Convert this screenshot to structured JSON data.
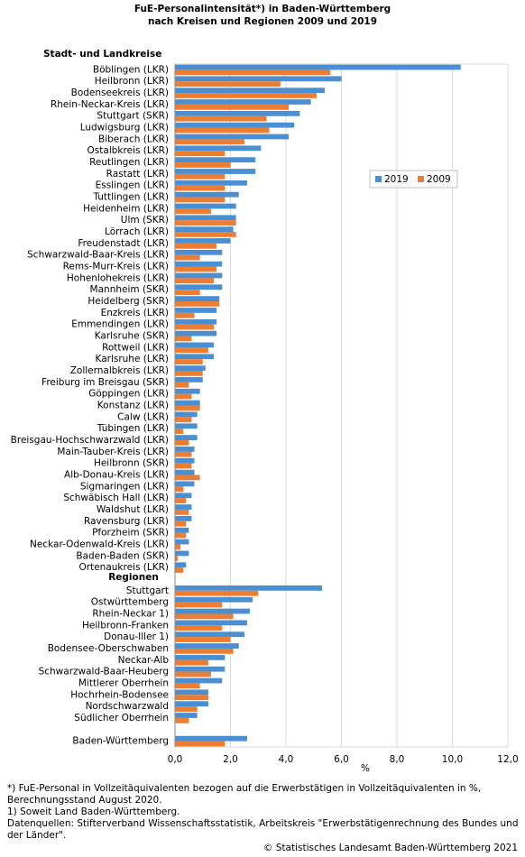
{
  "chart_data": {
    "type": "hbar",
    "title": "FuE-Personalintensität*) in Baden-Württemberg",
    "subtitle": "nach Kreisen und Regionen 2009 und 2019",
    "section_label": "Stadt- und Landkreise",
    "xlabel": "%",
    "categories": [
      "Böblingen (LKR)",
      "Heilbronn (LKR)",
      "Bodenseekreis (LKR)",
      "Rhein-Neckar-Kreis (LKR)",
      "Stuttgart (SKR)",
      "Ludwigsburg (LKR)",
      "Biberach (LKR)",
      "Ostalbkreis (LKR)",
      "Reutlingen (LKR)",
      "Rastatt (LKR)",
      "Esslingen (LKR)",
      "Tuttlingen (LKR)",
      "Heidenheim (LKR)",
      "Ulm (SKR)",
      "Lörrach (LKR)",
      "Freudenstadt (LKR)",
      "Schwarzwald-Baar-Kreis (LKR)",
      "Rems-Murr-Kreis  (LKR)",
      "Hohenlohekreis (LKR)",
      "Mannheim (SKR)",
      "Heidelberg (SKR)",
      "Enzkreis (LKR)",
      "Emmendingen (LKR)",
      "Karlsruhe (SKR)",
      "Rottweil (LKR)",
      "Karlsruhe (LKR)",
      "Zollernalbkreis (LKR)",
      "Freiburg im Breisgau (SKR)",
      "Göppingen (LKR)",
      "Konstanz (LKR)",
      "Calw (LKR)",
      "Tübingen (LKR)",
      "Breisgau-Hochschwarzwald (LKR)",
      "Main-Tauber-Kreis (LKR)",
      "Heilbronn (SKR)",
      "Alb-Donau-Kreis (LKR)",
      "Sigmaringen (LKR)",
      "Schwäbisch Hall (LKR)",
      "Waldshut (LKR)",
      "Ravensburg (LKR)",
      "Pforzheim (SKR)",
      "Neckar-Odenwald-Kreis (LKR)",
      "Baden-Baden (SKR)",
      "Ortenaukreis (LKR)",
      "Regionen",
      "Stuttgart",
      "Ostwürttemberg",
      "Rhein-Neckar 1)",
      "Heilbronn-Franken",
      "Donau-Iller 1)",
      "Bodensee-Oberschwaben",
      "Neckar-Alb",
      "Schwarzwald-Baar-Heuberg",
      "Mittlerer Oberrhein",
      "Hochrhein-Bodensee",
      "Nordschwarzwald",
      "Südlicher Oberrhein",
      null,
      "Baden-Württemberg"
    ],
    "series": [
      {
        "name": "2019",
        "color": "#4a8fd1",
        "values": [
          10.3,
          6.0,
          5.4,
          4.9,
          4.5,
          4.3,
          4.1,
          3.1,
          2.9,
          2.9,
          2.6,
          2.3,
          2.2,
          2.2,
          2.1,
          2.0,
          1.7,
          1.7,
          1.7,
          1.7,
          1.6,
          1.5,
          1.5,
          1.5,
          1.4,
          1.4,
          1.1,
          1.0,
          0.9,
          0.9,
          0.8,
          0.8,
          0.8,
          0.7,
          0.7,
          0.7,
          0.7,
          0.6,
          0.6,
          0.6,
          0.5,
          0.5,
          0.5,
          0.4,
          null,
          5.3,
          2.8,
          2.7,
          2.6,
          2.5,
          2.3,
          1.8,
          1.8,
          1.7,
          1.2,
          1.2,
          0.8,
          null,
          2.6
        ]
      },
      {
        "name": "2009",
        "color": "#ed7d31",
        "values": [
          5.6,
          3.8,
          5.1,
          4.1,
          3.3,
          3.4,
          2.5,
          1.8,
          2.0,
          1.8,
          1.8,
          1.8,
          1.3,
          2.2,
          2.2,
          1.5,
          0.9,
          1.5,
          1.4,
          0.9,
          1.6,
          0.7,
          1.4,
          0.6,
          1.2,
          1.0,
          1.0,
          0.5,
          0.6,
          0.9,
          0.6,
          0.3,
          0.5,
          0.6,
          0.6,
          0.9,
          0.3,
          0.4,
          0.5,
          0.4,
          0.4,
          0.2,
          0.1,
          0.3,
          null,
          3.0,
          1.7,
          2.1,
          1.7,
          2.0,
          2.1,
          1.2,
          1.3,
          0.9,
          1.2,
          0.8,
          0.5,
          null,
          1.8
        ]
      }
    ],
    "xlim": [
      0,
      12
    ],
    "xticks": [
      {
        "value": 0,
        "label": "0,0"
      },
      {
        "value": 2,
        "label": "2,0"
      },
      {
        "value": 4,
        "label": "4,0"
      },
      {
        "value": 6,
        "label": "6,0"
      },
      {
        "value": 8,
        "label": "8,0"
      },
      {
        "value": 10,
        "label": "10,0"
      },
      {
        "value": 12,
        "label": "12,0"
      }
    ],
    "grid": true,
    "notes": [
      "*) FuE-Personal in Vollzeitäquivalenten bezogen auf die Erwerbstätigen in Vollzeitäquivalenten in %, Berechnungsstand August 2020.",
      "1) Soweit Land Baden-Württemberg.",
      "Datenquellen: Stifterverband Wissenschaftsstatistik, Arbeitskreis \"Erwerbstätigenrechnung des Bundes und der Länder\"."
    ],
    "source": "© Statistisches Landesamt Baden-Württemberg 2021"
  }
}
